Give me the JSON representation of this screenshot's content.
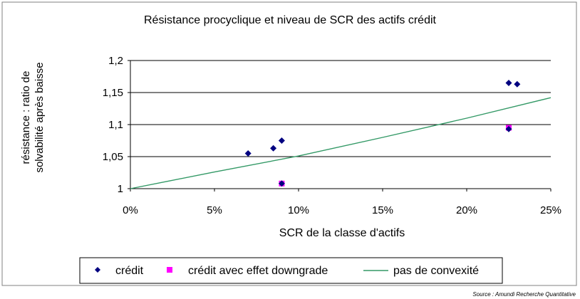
{
  "source_note": "Source : Amundi Recherche Quantitative",
  "colors": {
    "credit": "#000080",
    "credit_downgrade": "#ff00ff",
    "convexity_line": "#339966",
    "gridline": "#000000",
    "frame": "#808080"
  },
  "chart_data": {
    "type": "scatter",
    "title": "Résistance procyclique et niveau de SCR des actifs crédit",
    "xlabel": "SCR de la classe d'actifs",
    "ylabel_lines": [
      "résistance : ratio de",
      "solvabilité après baisse"
    ],
    "xlim": [
      0,
      0.25
    ],
    "ylim": [
      1,
      1.2
    ],
    "x_ticks": [
      0,
      0.05,
      0.1,
      0.15,
      0.2,
      0.25
    ],
    "x_tick_labels": [
      "0%",
      "5%",
      "10%",
      "15%",
      "20%",
      "25%"
    ],
    "y_ticks": [
      1,
      1.05,
      1.1,
      1.15,
      1.2
    ],
    "y_tick_labels": [
      "1",
      "1,05",
      "1,1",
      "1,15",
      "1,2"
    ],
    "grid": "horizontal",
    "legend_position": "bottom",
    "series": [
      {
        "name": "crédit",
        "marker": "diamond",
        "color": "#000080",
        "points": [
          {
            "x": 0.07,
            "y": 1.055
          },
          {
            "x": 0.085,
            "y": 1.063
          },
          {
            "x": 0.09,
            "y": 1.075
          },
          {
            "x": 0.09,
            "y": 1.008
          },
          {
            "x": 0.225,
            "y": 1.165
          },
          {
            "x": 0.23,
            "y": 1.163
          },
          {
            "x": 0.225,
            "y": 1.093
          }
        ]
      },
      {
        "name": "crédit avec effet downgrade",
        "marker": "square",
        "color": "#ff00ff",
        "points": [
          {
            "x": 0.09,
            "y": 1.008
          },
          {
            "x": 0.225,
            "y": 1.095
          }
        ]
      },
      {
        "name": "pas de convexité",
        "marker": "line",
        "color": "#339966",
        "points": [
          {
            "x": 0,
            "y": 1.0
          },
          {
            "x": 0.05,
            "y": 1.026
          },
          {
            "x": 0.1,
            "y": 1.051
          },
          {
            "x": 0.15,
            "y": 1.08
          },
          {
            "x": 0.2,
            "y": 1.11
          },
          {
            "x": 0.25,
            "y": 1.142
          }
        ]
      }
    ]
  }
}
